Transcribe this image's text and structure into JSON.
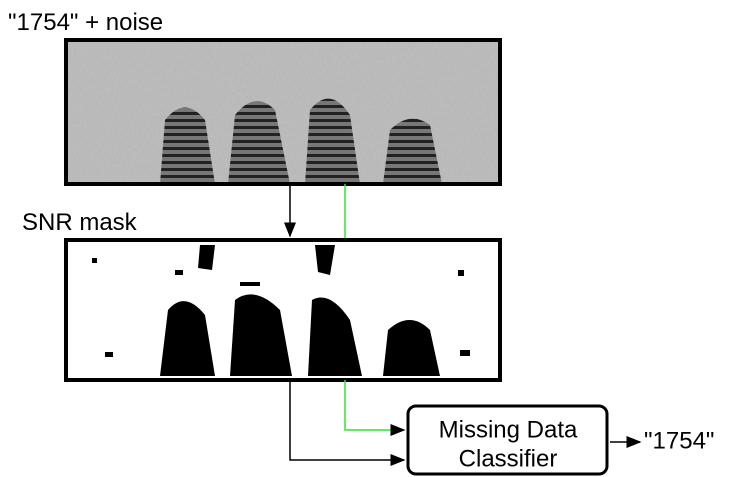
{
  "input": {
    "label": "\"1754\" + noise"
  },
  "mask": {
    "label": "SNR mask"
  },
  "classifier": {
    "lines": [
      "Missing Data",
      "Classifier"
    ]
  },
  "output": {
    "label": "\"1754\""
  }
}
